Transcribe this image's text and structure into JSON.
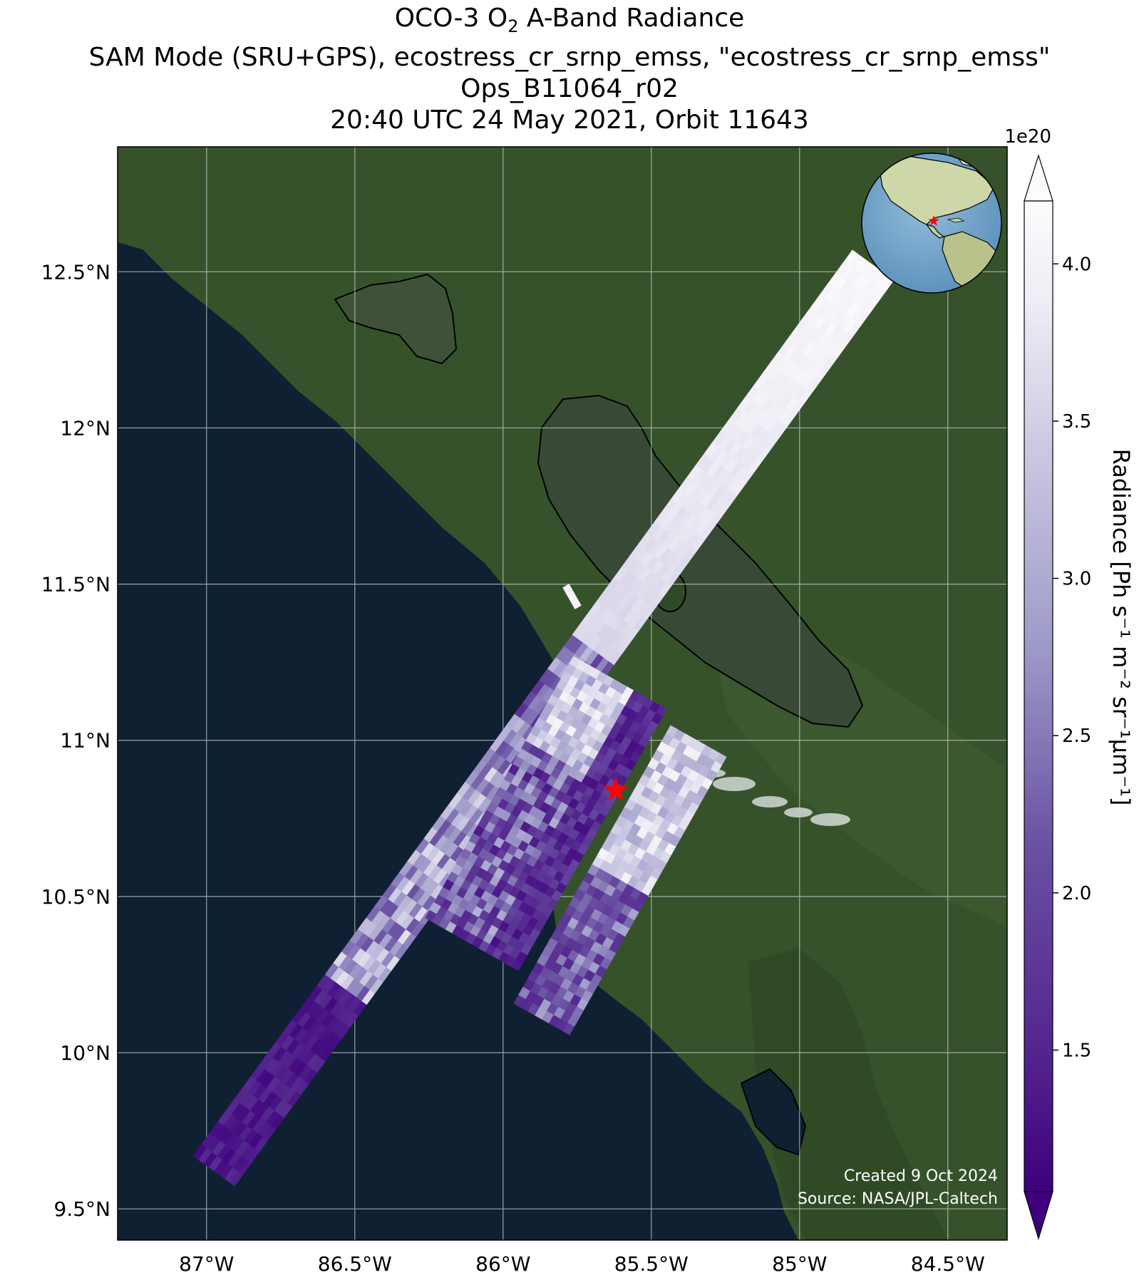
{
  "title": {
    "line1_pre": "OCO-3 O",
    "line1_sub": "2",
    "line1_post": " A-Band Radiance",
    "line2": "SAM Mode (SRU+GPS), ecostress_cr_srnp_emss, \"ecostress_cr_srnp_emss\"",
    "line3": "Ops_B11064_r02",
    "line4": "20:40 UTC 24 May 2021, Orbit 11643"
  },
  "axes": {
    "lat_ticks": [
      {
        "value": 12.5,
        "label": "12.5°N"
      },
      {
        "value": 12.0,
        "label": "12°N"
      },
      {
        "value": 11.5,
        "label": "11.5°N"
      },
      {
        "value": 11.0,
        "label": "11°N"
      },
      {
        "value": 10.5,
        "label": "10.5°N"
      },
      {
        "value": 10.0,
        "label": "10°N"
      },
      {
        "value": 9.5,
        "label": "9.5°N"
      }
    ],
    "lon_ticks": [
      {
        "value": -87.0,
        "label": "87°W"
      },
      {
        "value": -86.5,
        "label": "86.5°W"
      },
      {
        "value": -86.0,
        "label": "86°W"
      },
      {
        "value": -85.5,
        "label": "85.5°W"
      },
      {
        "value": -85.0,
        "label": "85°W"
      },
      {
        "value": -84.5,
        "label": "84.5°W"
      }
    ],
    "lon_range": [
      -87.3,
      -84.3
    ],
    "lat_range": [
      9.4,
      12.9
    ]
  },
  "colorbar": {
    "exponent_label": "1e20",
    "label": "Radiance [Ph s⁻¹ m⁻² sr⁻¹μm⁻¹]",
    "range": [
      1.05,
      4.2
    ],
    "extend": "both",
    "colormap": "Purples_r",
    "ticks": [
      {
        "value": 4.0,
        "label": "4.0"
      },
      {
        "value": 3.5,
        "label": "3.5"
      },
      {
        "value": 3.0,
        "label": "3.0"
      },
      {
        "value": 2.5,
        "label": "2.5"
      },
      {
        "value": 2.0,
        "label": "2.0"
      },
      {
        "value": 1.5,
        "label": "1.5"
      }
    ]
  },
  "target": {
    "lon": -85.62,
    "lat": 10.84,
    "marker": "star-icon",
    "color": "#ff0000"
  },
  "inset_globe": {
    "center_region": "Central America",
    "marker": "star-icon"
  },
  "credits": {
    "created": "Created 9 Oct 2024",
    "source": "Source: NASA/JPL-Caltech"
  },
  "colors": {
    "ocean": "#0f2033",
    "land": "#36522b",
    "lake": "#384a36",
    "swath_high": "#f2f0f7",
    "swath_low": "#3f007d",
    "target_star": "#ff0000"
  }
}
